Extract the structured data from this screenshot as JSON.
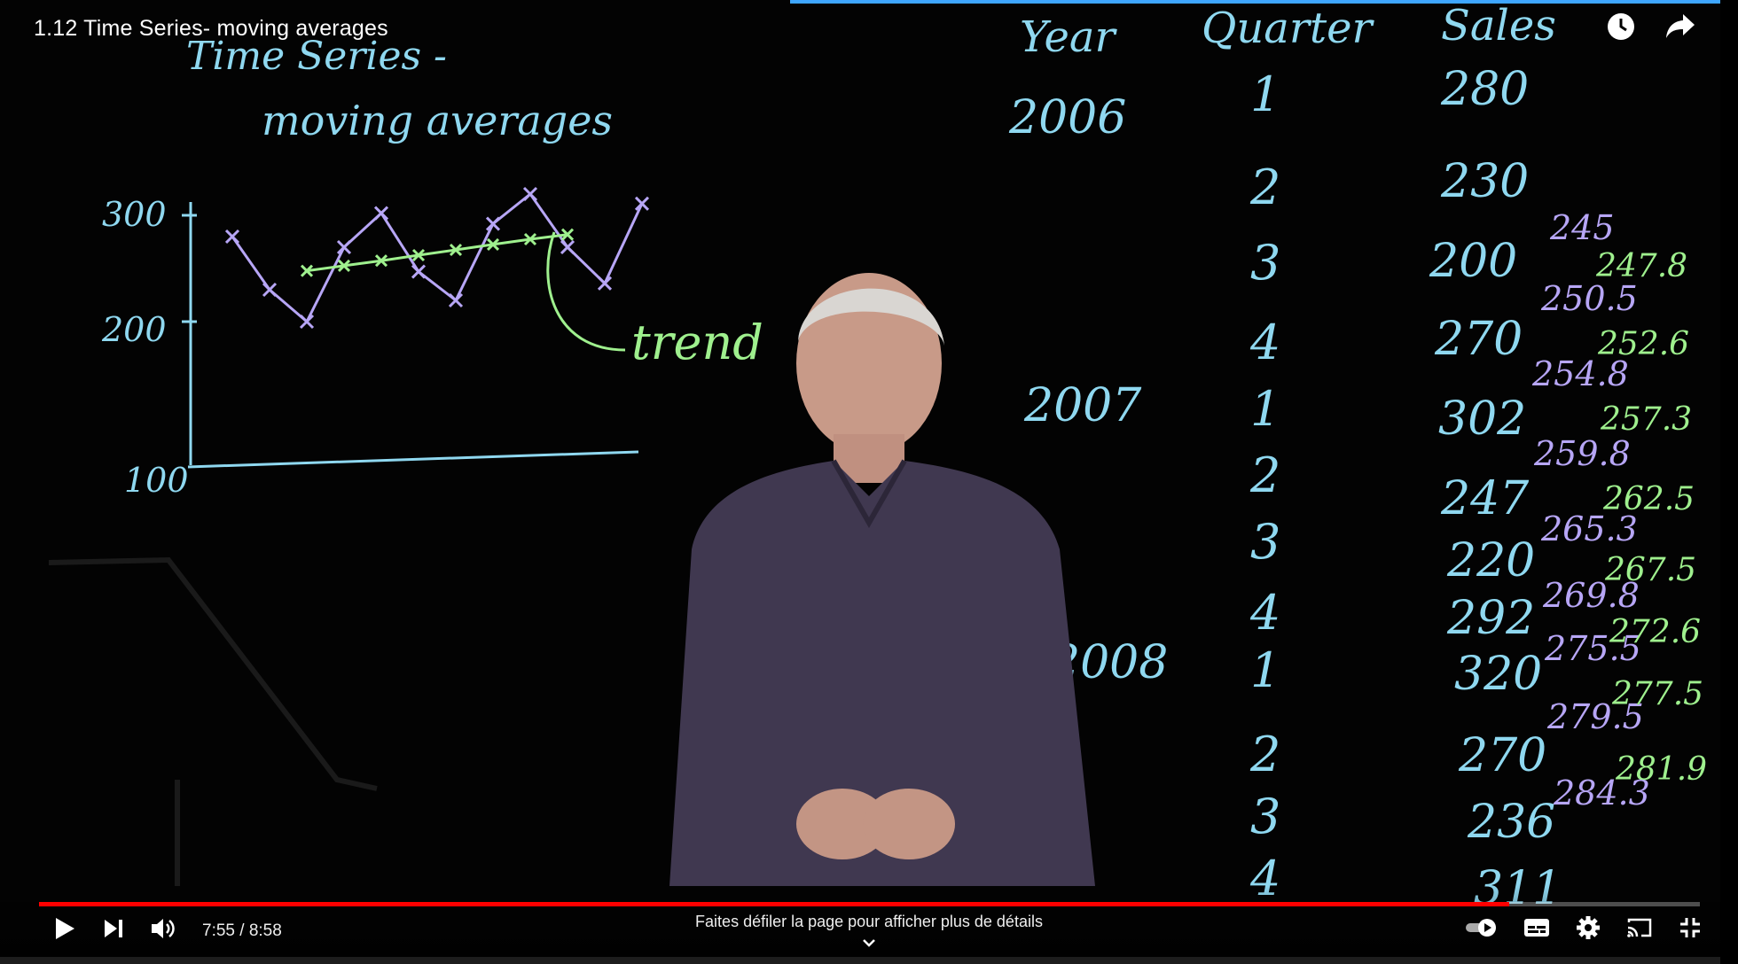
{
  "video": {
    "title": "1.12 Time Series- moving averages",
    "time_current": "7:55",
    "time_separator": " / ",
    "time_total": "8:58",
    "progress_fraction": 0.885,
    "scroll_hint": "Faites défiler la page pour afficher plus de détails"
  },
  "board": {
    "heading_line1": "Time Series -",
    "heading_line2": "moving averages",
    "axis_labels": [
      "300",
      "200",
      "100"
    ],
    "trend_label": "trend",
    "table_headers": [
      "Year",
      "Quarter",
      "Sales"
    ],
    "years": [
      "2006",
      "2007",
      "2008"
    ],
    "quarters": [
      "1",
      "2",
      "3",
      "4",
      "1",
      "2",
      "3",
      "4",
      "1",
      "2",
      "3",
      "4"
    ],
    "sales": [
      "280",
      "230",
      "200",
      "270",
      "302",
      "247",
      "220",
      "292",
      "320",
      "270",
      "236",
      "311"
    ],
    "moving_averages": [
      "245",
      "250.5",
      "254.8",
      "259.8",
      "265.3",
      "269.8",
      "275.5",
      "279.5",
      "284.3"
    ],
    "centred_averages": [
      "247.8",
      "252.6",
      "257.3",
      "262.5",
      "267.5",
      "272.6",
      "277.5",
      "281.9"
    ]
  },
  "colors": {
    "chalk_blue": "#8fd8f0",
    "chalk_purple": "#b7a6f6",
    "chalk_green": "#9ff08e",
    "progress_red": "#ff0000",
    "load_blue": "#3ea6ff"
  },
  "icons": {
    "play": "play-icon",
    "next": "next-icon",
    "volume": "volume-icon",
    "watch_later": "clock-icon",
    "share": "share-icon",
    "autoplay": "autoplay-toggle-icon",
    "subtitles": "subtitles-icon",
    "settings": "gear-icon",
    "cast": "cast-icon",
    "exit_fullscreen": "exit-fullscreen-icon",
    "chevron": "chevron-down-icon"
  }
}
